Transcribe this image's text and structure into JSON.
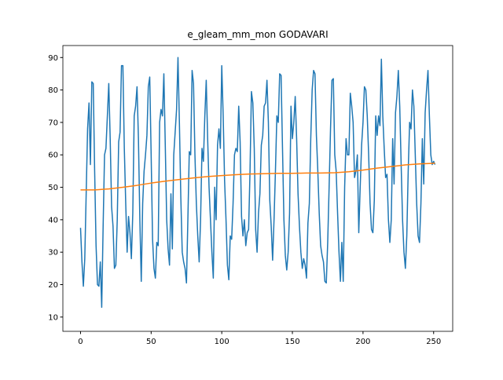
{
  "chart_data": {
    "type": "line",
    "title": "e_gleam_mm_mon GODAVARI",
    "x": [
      0,
      1,
      2,
      3,
      4,
      5,
      6,
      7,
      8,
      9,
      10,
      11,
      12,
      13,
      14,
      15,
      16,
      17,
      18,
      19,
      20,
      21,
      22,
      23,
      24,
      25,
      26,
      27,
      28,
      29,
      30,
      31,
      32,
      33,
      34,
      35,
      36,
      37,
      38,
      39,
      40,
      41,
      42,
      43,
      44,
      45,
      46,
      47,
      48,
      49,
      50,
      51,
      52,
      53,
      54,
      55,
      56,
      57,
      58,
      59,
      60,
      61,
      62,
      63,
      64,
      65,
      66,
      67,
      68,
      69,
      70,
      71,
      72,
      73,
      74,
      75,
      76,
      77,
      78,
      79,
      80,
      81,
      82,
      83,
      84,
      85,
      86,
      87,
      88,
      89,
      90,
      91,
      92,
      93,
      94,
      95,
      96,
      97,
      98,
      99,
      100,
      101,
      102,
      103,
      104,
      105,
      106,
      107,
      108,
      109,
      110,
      111,
      112,
      113,
      114,
      115,
      116,
      117,
      118,
      119,
      120,
      121,
      122,
      123,
      124,
      125,
      126,
      127,
      128,
      129,
      130,
      131,
      132,
      133,
      134,
      135,
      136,
      137,
      138,
      139,
      140,
      141,
      142,
      143,
      144,
      145,
      146,
      147,
      148,
      149,
      150,
      151,
      152,
      153,
      154,
      155,
      156,
      157,
      158,
      159,
      160,
      161,
      162,
      163,
      164,
      165,
      166,
      167,
      168,
      169,
      170,
      171,
      172,
      173,
      174,
      175,
      176,
      177,
      178,
      179,
      180,
      181,
      182,
      183,
      184,
      185,
      186,
      187,
      188,
      189,
      190,
      191,
      192,
      193,
      194,
      195,
      196,
      197,
      198,
      199,
      200,
      201,
      202,
      203,
      204,
      205,
      206,
      207,
      208,
      209,
      210,
      211,
      212,
      213,
      214,
      215,
      216,
      217,
      218,
      219,
      220,
      221,
      222,
      223,
      224,
      225,
      226,
      227,
      228,
      229,
      230,
      231,
      232,
      233,
      234,
      235,
      236,
      237,
      238,
      239,
      240,
      241,
      242,
      243,
      244,
      245,
      246,
      247,
      248,
      249,
      250,
      251
    ],
    "series": [
      {
        "color": "#1f77b4",
        "values": [
          37.5,
          27,
          19.5,
          28,
          48,
          68,
          76,
          57,
          82.5,
          82,
          55,
          32,
          20,
          19.5,
          27,
          13,
          38,
          60,
          62,
          72,
          82,
          65,
          44,
          38,
          25,
          26,
          40,
          64,
          67,
          87.5,
          87.5,
          62,
          45,
          30,
          41,
          36,
          28,
          42,
          72,
          75,
          81,
          65,
          40,
          21,
          45,
          55,
          60,
          66,
          81,
          84,
          60,
          34,
          25,
          22,
          33,
          32,
          70,
          74,
          72,
          85,
          63,
          40,
          31,
          26,
          48,
          31,
          60,
          67,
          74,
          90,
          70,
          47,
          30,
          27,
          25,
          20.5,
          40,
          61,
          60,
          86,
          82,
          60,
          45,
          35,
          27,
          40,
          62,
          58,
          72,
          83,
          65,
          50,
          40,
          30,
          22,
          50,
          40,
          63,
          68,
          62,
          87.5,
          72,
          52,
          40,
          26,
          21.5,
          35,
          34,
          45,
          60,
          62,
          61,
          75,
          64,
          41,
          35,
          40,
          32,
          36,
          37,
          55,
          79.5,
          76,
          62,
          37,
          30,
          42,
          48,
          63,
          66,
          75,
          76,
          83,
          70,
          46,
          38,
          27.5,
          40,
          55,
          72,
          70,
          85,
          84.5,
          62,
          40,
          29,
          24.5,
          30,
          42,
          75,
          65,
          70,
          78,
          65,
          48,
          38,
          30,
          25,
          28,
          26,
          22,
          39,
          45,
          65,
          80,
          86,
          85,
          66,
          55,
          42,
          32,
          29,
          27,
          21,
          20.5,
          33,
          50,
          68,
          83,
          83.5,
          60,
          55,
          42,
          30,
          21,
          33,
          21,
          50,
          65,
          60,
          60,
          79,
          75,
          70,
          53,
          55,
          60,
          36,
          50,
          63,
          70,
          81,
          80,
          72,
          60,
          45,
          37,
          36,
          46,
          72,
          66,
          72,
          69,
          89.5,
          72,
          62,
          53,
          54,
          40,
          33,
          40,
          65,
          51,
          73,
          78,
          86,
          75,
          57,
          40,
          30,
          25,
          35,
          55,
          70,
          68,
          80,
          75,
          60,
          45,
          35,
          33,
          45,
          65,
          51,
          73,
          80,
          86,
          72,
          60,
          57,
          58,
          57
        ]
      },
      {
        "color": "#ff7f0e",
        "x": [
          0,
          10,
          20,
          30,
          40,
          50,
          60,
          70,
          80,
          90,
          100,
          110,
          120,
          130,
          140,
          150,
          160,
          170,
          180,
          190,
          200,
          210,
          220,
          230,
          240,
          250,
          251
        ],
        "values": [
          49.2,
          49.2,
          49.5,
          50,
          50.6,
          51.3,
          51.9,
          52.4,
          52.9,
          53.3,
          53.6,
          53.9,
          54.1,
          54.2,
          54.3,
          54.3,
          54.4,
          54.4,
          54.5,
          54.8,
          55.3,
          55.9,
          56.4,
          56.9,
          57.2,
          57.4,
          57.5
        ]
      }
    ],
    "xlim": [
      -12.5,
      263.5
    ],
    "ylim": [
      5.6,
      93.7
    ],
    "xticks": [
      0,
      50,
      100,
      150,
      200,
      250
    ],
    "yticks": [
      10,
      20,
      30,
      40,
      50,
      60,
      70,
      80,
      90
    ]
  }
}
